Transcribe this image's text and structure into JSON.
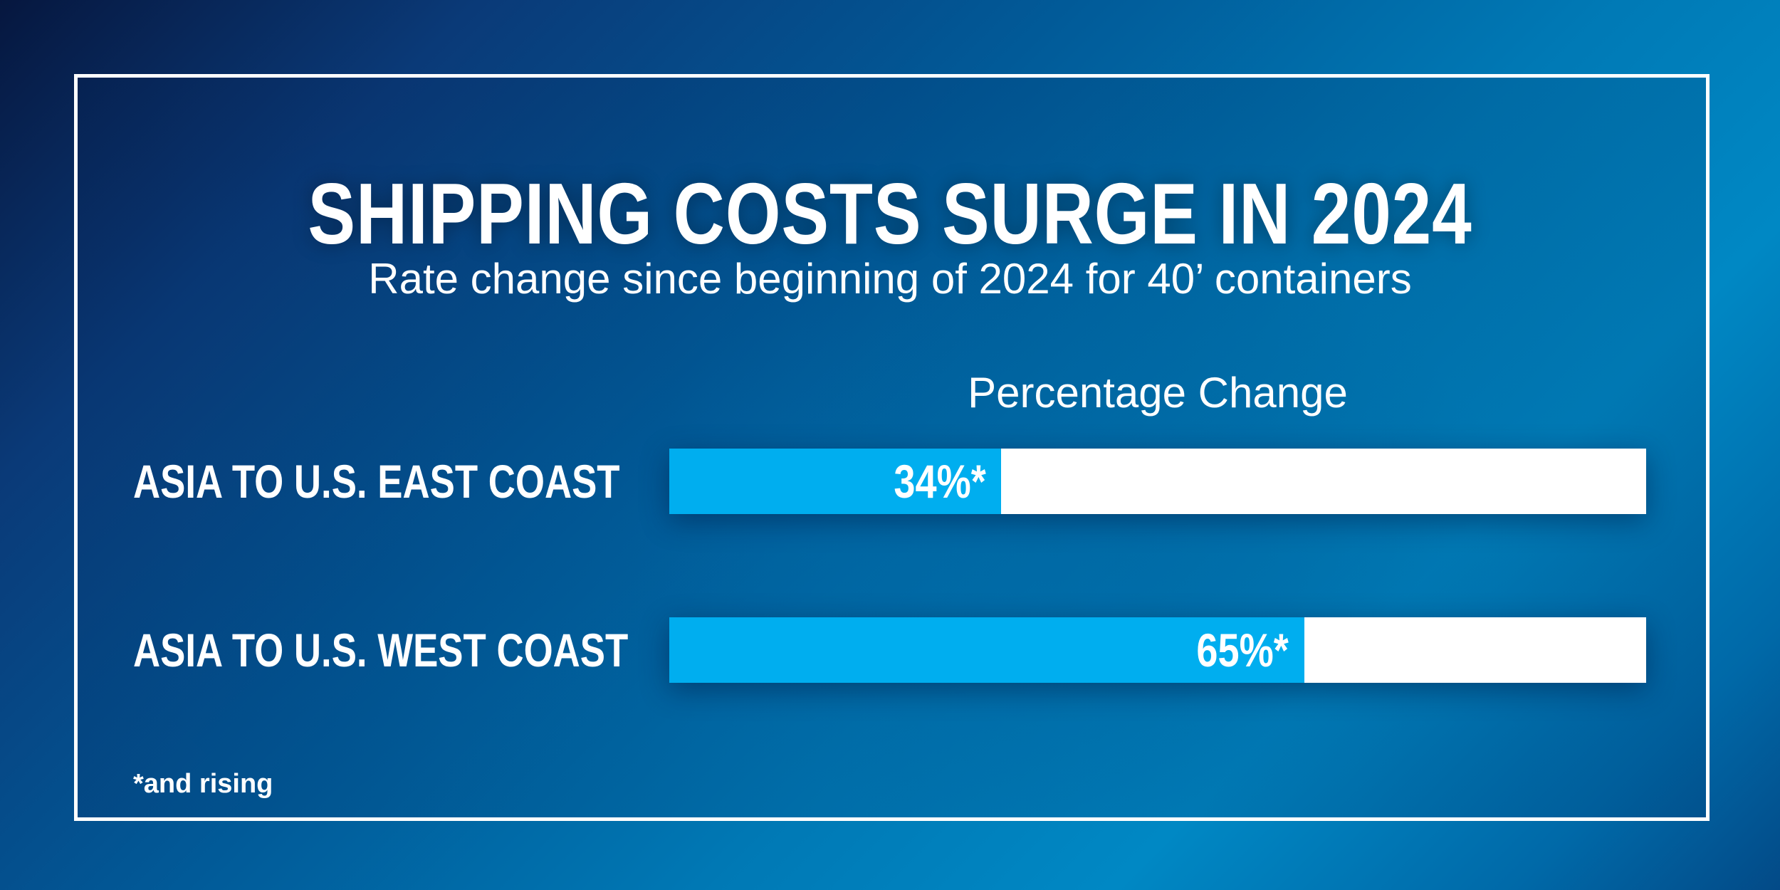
{
  "chart_data": {
    "type": "bar",
    "orientation": "horizontal",
    "title": "SHIPPING COSTS SURGE IN 2024",
    "subtitle": "Rate change since beginning of 2024 for 40’ containers",
    "xlabel": "Percentage Change",
    "xlim": [
      0,
      100
    ],
    "grid": false,
    "categories": [
      "ASIA TO U.S. EAST COAST",
      "ASIA TO U.S. WEST COAST"
    ],
    "values": [
      34,
      65
    ],
    "data_labels": [
      "34%*",
      "65%*"
    ],
    "footnote": "*and rising",
    "colors": {
      "bar": "#00aeef",
      "track": "#ffffff",
      "background": "#015a98"
    }
  }
}
